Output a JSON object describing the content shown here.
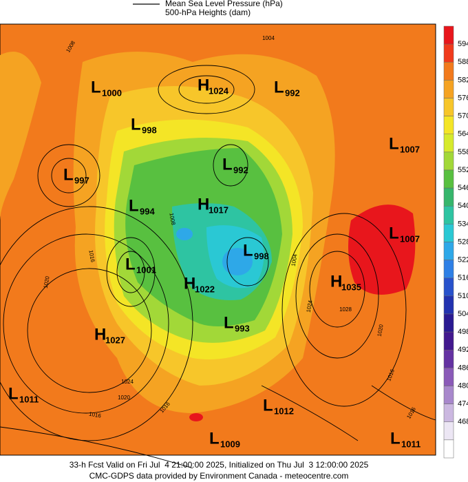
{
  "legend": {
    "line_label": "Mean Sea Level Pressure (hPa)",
    "fill_label": "500-hPa Heights (dam)"
  },
  "colorbar": {
    "levels": [
      594,
      588,
      582,
      576,
      570,
      564,
      558,
      552,
      546,
      540,
      534,
      528,
      522,
      516,
      510,
      504,
      498,
      492,
      486,
      480,
      474,
      468
    ],
    "colors": [
      "#e8161c",
      "#f03a1c",
      "#f27a1c",
      "#f5a322",
      "#f7c62a",
      "#f4e526",
      "#d6ea2c",
      "#a2d838",
      "#58c040",
      "#36b66c",
      "#2ec4a2",
      "#2ac8d4",
      "#2ea8e8",
      "#2e80e6",
      "#2852cc",
      "#2232b0",
      "#2a1a92",
      "#42188e",
      "#6432a2",
      "#8a5ab8",
      "#a888cc",
      "#cbb8e0",
      "#ece6f4",
      "#ffffff"
    ]
  },
  "pressure_centers": [
    {
      "type": "L",
      "pressure": 1000
    },
    {
      "type": "H",
      "pressure": 1024
    },
    {
      "type": "L",
      "pressure": 992
    },
    {
      "type": "L",
      "pressure": 998
    },
    {
      "type": "L",
      "pressure": 1007
    },
    {
      "type": "L",
      "pressure": 997
    },
    {
      "type": "L",
      "pressure": 992
    },
    {
      "type": "L",
      "pressure": 994
    },
    {
      "type": "H",
      "pressure": 1017
    },
    {
      "type": "L",
      "pressure": 1007
    },
    {
      "type": "L",
      "pressure": 998
    },
    {
      "type": "L",
      "pressure": 1001
    },
    {
      "type": "H",
      "pressure": 1022
    },
    {
      "type": "H",
      "pressure": 1035
    },
    {
      "type": "L",
      "pressure": 993
    },
    {
      "type": "H",
      "pressure": 1027
    },
    {
      "type": "L",
      "pressure": 1011
    },
    {
      "type": "L",
      "pressure": 1012
    },
    {
      "type": "L",
      "pressure": 1009
    },
    {
      "type": "L",
      "pressure": 1011
    }
  ],
  "contour_labels": [
    1004,
    1008,
    1008,
    1004,
    1016,
    1020,
    1024,
    1020,
    1016,
    1016,
    1028,
    1024,
    1020,
    1016,
    1016
  ],
  "footer": {
    "line1": "33-h Fcst Valid on Fri Jul  4 21:00:00 2025, Initialized on Thu Jul  3 12:00:00 2025",
    "line2": "CMC-GDPS data provided by Environment Canada - meteocentre.com"
  }
}
